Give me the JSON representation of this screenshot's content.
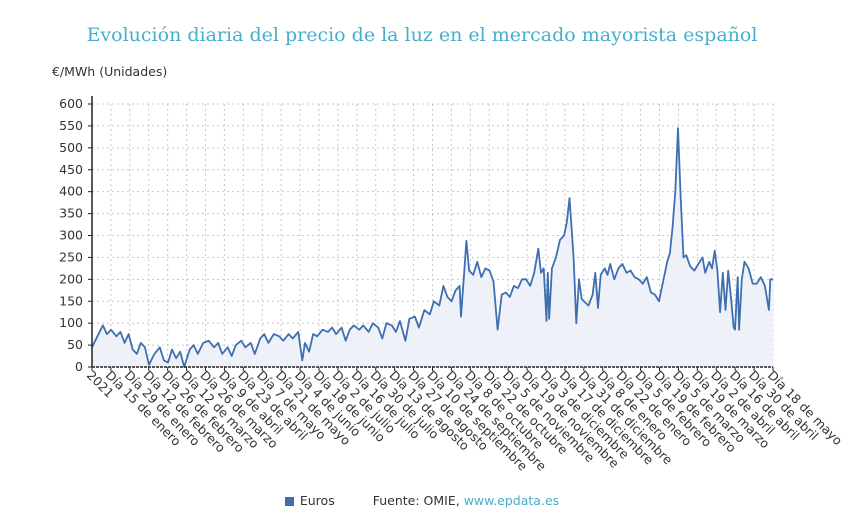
{
  "chart_data": {
    "type": "area",
    "title": "Evolución diaria del precio de la luz en el mercado mayorista español",
    "ylabel": "€/MWh (Unidades)",
    "xlabel": "",
    "ylim": [
      0,
      600
    ],
    "yticks": [
      0,
      50,
      100,
      150,
      200,
      250,
      300,
      350,
      400,
      450,
      500,
      550,
      600
    ],
    "grid": true,
    "legend_position": "bottom",
    "colors": {
      "line": "#3f6fb0",
      "fill": "#eef2f8",
      "title": "#49aecb"
    },
    "x_domain_days": [
      0,
      502
    ],
    "x_tick_labels": [
      "2021",
      "Día 15 de enero",
      "Día 29 de enero",
      "Día 12 de febrero",
      "Día 26 de febrero",
      "Día 12 de marzo",
      "Día 26 de marzo",
      "Día 9 de abril",
      "Día 23 de abril",
      "Día 7 de mayo",
      "Día 21 de mayo",
      "Día 4 de junio",
      "Día 18 de junio",
      "Día 2 de julio",
      "Día 16 de julio",
      "Día 30 de julio",
      "Día 13 de agosto",
      "Día 27 de agosto",
      "Día 10 de septiembre",
      "Día 24 de septiembre",
      "Día 8 de octubre",
      "Día 22 de octubre",
      "Día 5 de noviembre",
      "Día 19 de noviembre",
      "Día 3 de diciembre",
      "Día 17 de diciembre",
      "Día 31 de diciembre",
      "Día 8 de enero",
      "Día 22 de enero",
      "Día 5 de febrero",
      "Día 19 de febrero",
      "Día 5 de marzo",
      "Día 19 de marzo",
      "Día 2 de abril",
      "Día 16 de abril",
      "Día 30 de abril",
      "Día 18 de mayo"
    ],
    "series": [
      {
        "name": "Euros",
        "points": [
          [
            0,
            45
          ],
          [
            4,
            70
          ],
          [
            8,
            95
          ],
          [
            11,
            75
          ],
          [
            14,
            85
          ],
          [
            18,
            70
          ],
          [
            21,
            80
          ],
          [
            24,
            55
          ],
          [
            27,
            75
          ],
          [
            30,
            40
          ],
          [
            33,
            30
          ],
          [
            36,
            55
          ],
          [
            39,
            45
          ],
          [
            42,
            5
          ],
          [
            46,
            30
          ],
          [
            50,
            45
          ],
          [
            53,
            15
          ],
          [
            56,
            10
          ],
          [
            59,
            40
          ],
          [
            62,
            20
          ],
          [
            65,
            35
          ],
          [
            68,
            0
          ],
          [
            72,
            40
          ],
          [
            75,
            50
          ],
          [
            78,
            30
          ],
          [
            82,
            55
          ],
          [
            86,
            60
          ],
          [
            90,
            45
          ],
          [
            93,
            55
          ],
          [
            96,
            30
          ],
          [
            100,
            45
          ],
          [
            103,
            25
          ],
          [
            106,
            50
          ],
          [
            110,
            60
          ],
          [
            113,
            45
          ],
          [
            117,
            55
          ],
          [
            120,
            30
          ],
          [
            124,
            65
          ],
          [
            127,
            75
          ],
          [
            130,
            55
          ],
          [
            134,
            75
          ],
          [
            138,
            70
          ],
          [
            141,
            60
          ],
          [
            145,
            75
          ],
          [
            148,
            65
          ],
          [
            152,
            80
          ],
          [
            155,
            15
          ],
          [
            157,
            55
          ],
          [
            160,
            35
          ],
          [
            163,
            75
          ],
          [
            166,
            70
          ],
          [
            170,
            85
          ],
          [
            174,
            80
          ],
          [
            177,
            90
          ],
          [
            180,
            75
          ],
          [
            184,
            90
          ],
          [
            187,
            60
          ],
          [
            190,
            85
          ],
          [
            193,
            95
          ],
          [
            197,
            85
          ],
          [
            200,
            95
          ],
          [
            204,
            80
          ],
          [
            207,
            100
          ],
          [
            211,
            90
          ],
          [
            214,
            65
          ],
          [
            217,
            100
          ],
          [
            221,
            95
          ],
          [
            224,
            80
          ],
          [
            227,
            105
          ],
          [
            231,
            60
          ],
          [
            234,
            110
          ],
          [
            238,
            115
          ],
          [
            241,
            90
          ],
          [
            245,
            130
          ],
          [
            249,
            120
          ],
          [
            252,
            150
          ],
          [
            256,
            140
          ],
          [
            259,
            185
          ],
          [
            262,
            160
          ],
          [
            265,
            150
          ],
          [
            268,
            175
          ],
          [
            271,
            185
          ],
          [
            272,
            115
          ],
          [
            274,
            200
          ],
          [
            276,
            288
          ],
          [
            278,
            220
          ],
          [
            281,
            210
          ],
          [
            284,
            240
          ],
          [
            287,
            205
          ],
          [
            290,
            225
          ],
          [
            293,
            220
          ],
          [
            296,
            195
          ],
          [
            299,
            85
          ],
          [
            302,
            165
          ],
          [
            305,
            170
          ],
          [
            308,
            160
          ],
          [
            311,
            185
          ],
          [
            314,
            180
          ],
          [
            317,
            200
          ],
          [
            320,
            200
          ],
          [
            323,
            185
          ],
          [
            326,
            215
          ],
          [
            329,
            270
          ],
          [
            331,
            215
          ],
          [
            333,
            225
          ],
          [
            335,
            105
          ],
          [
            336,
            215
          ],
          [
            337,
            110
          ],
          [
            339,
            225
          ],
          [
            342,
            250
          ],
          [
            345,
            290
          ],
          [
            348,
            300
          ],
          [
            350,
            330
          ],
          [
            352,
            385
          ],
          [
            355,
            250
          ],
          [
            357,
            100
          ],
          [
            359,
            200
          ],
          [
            361,
            155
          ],
          [
            366,
            140
          ],
          [
            369,
            165
          ],
          [
            371,
            215
          ],
          [
            373,
            135
          ],
          [
            375,
            210
          ],
          [
            378,
            225
          ],
          [
            380,
            210
          ],
          [
            382,
            235
          ],
          [
            385,
            200
          ],
          [
            388,
            225
          ],
          [
            391,
            235
          ],
          [
            394,
            215
          ],
          [
            397,
            220
          ],
          [
            400,
            205
          ],
          [
            403,
            200
          ],
          [
            406,
            190
          ],
          [
            409,
            205
          ],
          [
            412,
            170
          ],
          [
            415,
            165
          ],
          [
            418,
            150
          ],
          [
            421,
            195
          ],
          [
            424,
            240
          ],
          [
            426,
            260
          ],
          [
            428,
            320
          ],
          [
            430,
            400
          ],
          [
            432,
            545
          ],
          [
            434,
            380
          ],
          [
            436,
            250
          ],
          [
            438,
            255
          ],
          [
            441,
            230
          ],
          [
            444,
            220
          ],
          [
            447,
            235
          ],
          [
            450,
            250
          ],
          [
            452,
            215
          ],
          [
            455,
            240
          ],
          [
            457,
            225
          ],
          [
            459,
            265
          ],
          [
            461,
            220
          ],
          [
            463,
            125
          ],
          [
            465,
            215
          ],
          [
            467,
            130
          ],
          [
            469,
            220
          ],
          [
            471,
            160
          ],
          [
            473,
            90
          ],
          [
            474,
            85
          ],
          [
            476,
            205
          ],
          [
            477,
            85
          ],
          [
            479,
            200
          ],
          [
            481,
            240
          ],
          [
            484,
            225
          ],
          [
            487,
            190
          ],
          [
            490,
            190
          ],
          [
            493,
            205
          ],
          [
            496,
            185
          ],
          [
            499,
            130
          ],
          [
            500,
            200
          ],
          [
            502,
            200
          ]
        ]
      }
    ]
  },
  "legend": {
    "series_label": "Euros",
    "source_prefix": "Fuente: OMIE, ",
    "source_link": "www.epdata.es"
  }
}
